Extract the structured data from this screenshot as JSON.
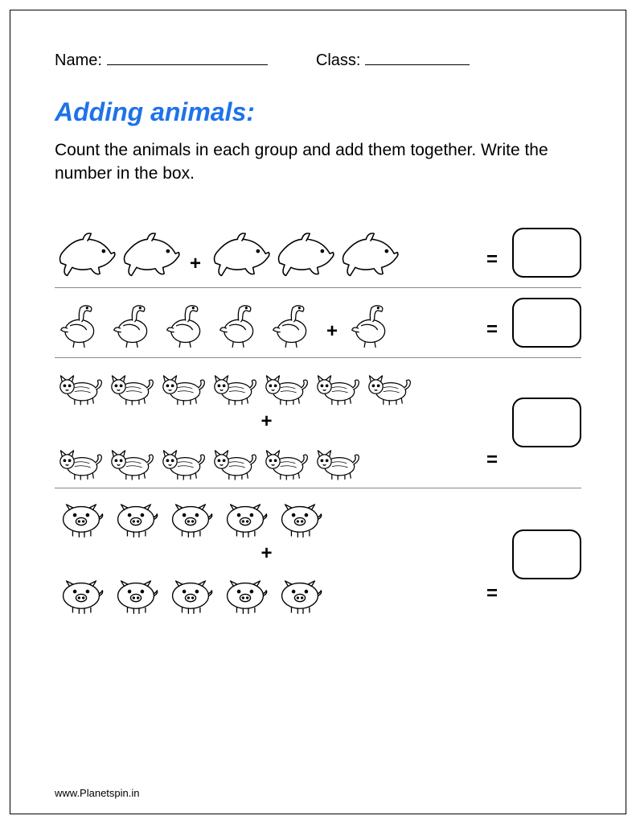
{
  "header": {
    "name_label": "Name:",
    "class_label": "Class:"
  },
  "title": {
    "text": "Adding animals:",
    "color": "#1e73e8"
  },
  "instructions": "Count the animals in each group and add them together. Write the number in the box.",
  "operators": {
    "plus": "+",
    "equals": "="
  },
  "problems": [
    {
      "animal": "dolphin",
      "group1": 2,
      "group2": 3,
      "layout": "single",
      "size": 78
    },
    {
      "animal": "vulture",
      "group1": 5,
      "group2": 1,
      "layout": "single",
      "size": 64
    },
    {
      "animal": "cat",
      "group1": 7,
      "group2": 6,
      "layout": "stacked",
      "size": 62
    },
    {
      "animal": "pig",
      "group1": 5,
      "group2": 5,
      "layout": "stacked",
      "size": 66
    }
  ],
  "styling": {
    "page_border_color": "#000000",
    "answer_box_border": "#000000",
    "answer_box_radius": 14,
    "divider_color": "#888888",
    "text_color": "#000000",
    "background": "#ffffff"
  },
  "footer": "www.Planetspin.in"
}
